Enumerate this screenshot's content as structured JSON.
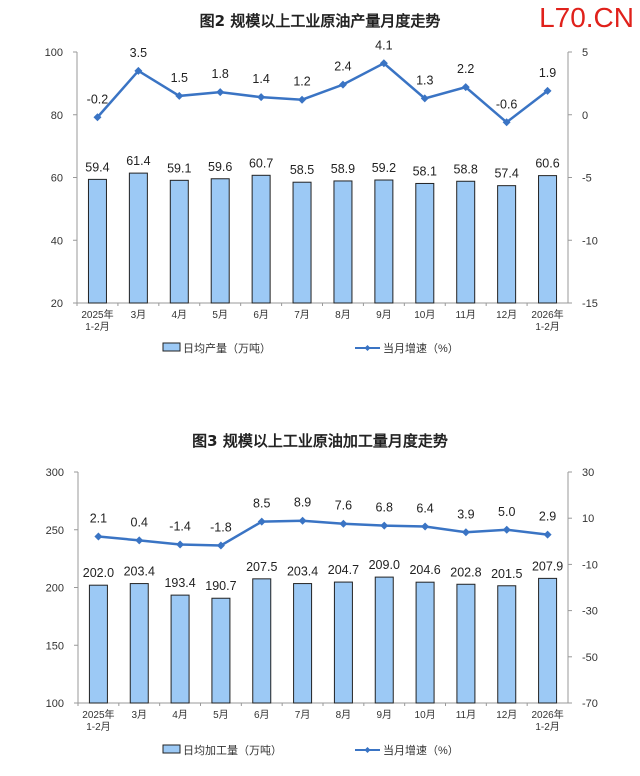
{
  "watermark": "L70.CN",
  "chart_data": [
    {
      "type": "bar+line",
      "title": "图2  规模以上工业原油产量月度走势",
      "categories": [
        [
          "2025年",
          "1-2月"
        ],
        [
          "3月"
        ],
        [
          "4月"
        ],
        [
          "5月"
        ],
        [
          "6月"
        ],
        [
          "7月"
        ],
        [
          "8月"
        ],
        [
          "9月"
        ],
        [
          "10月"
        ],
        [
          "11月"
        ],
        [
          "12月"
        ],
        [
          "2026年",
          "1-2月"
        ]
      ],
      "series": [
        {
          "name": "日均产量（万吨）",
          "type": "bar",
          "axis": "left",
          "values": [
            59.4,
            61.4,
            59.1,
            59.6,
            60.7,
            58.5,
            58.9,
            59.2,
            58.1,
            58.8,
            57.4,
            60.6
          ],
          "labels": [
            "59.4",
            "61.4",
            "59.1",
            "59.6",
            "60.7",
            "58.5",
            "58.9",
            "59.2",
            "58.1",
            "58.8",
            "57.4",
            "60.6"
          ]
        },
        {
          "name": "当月增速（%）",
          "type": "line",
          "axis": "right",
          "values": [
            -0.2,
            3.5,
            1.5,
            1.8,
            1.4,
            1.2,
            2.4,
            4.1,
            1.3,
            2.2,
            -0.6,
            1.9
          ],
          "labels": [
            "-0.2",
            "3.5",
            "1.5",
            "1.8",
            "1.4",
            "1.2",
            "2.4",
            "4.1",
            "1.3",
            "2.2",
            "-0.6",
            "1.9"
          ]
        }
      ],
      "ylim_left": [
        20,
        100
      ],
      "yticks_left": [
        "20",
        "40",
        "60",
        "80",
        "100"
      ],
      "ylim_right": [
        -15,
        5
      ],
      "yticks_right": [
        "-15",
        "-10",
        "-5",
        "0",
        "5"
      ],
      "legend": "bottom",
      "bar_color": "#9cc9f5",
      "line_color": "#3a74c4"
    },
    {
      "type": "bar+line",
      "title": "图3  规模以上工业原油加工量月度走势",
      "categories": [
        [
          "2025年",
          "1-2月"
        ],
        [
          "3月"
        ],
        [
          "4月"
        ],
        [
          "5月"
        ],
        [
          "6月"
        ],
        [
          "7月"
        ],
        [
          "8月"
        ],
        [
          "9月"
        ],
        [
          "10月"
        ],
        [
          "11月"
        ],
        [
          "12月"
        ],
        [
          "2026年",
          "1-2月"
        ]
      ],
      "series": [
        {
          "name": "日均加工量（万吨）",
          "type": "bar",
          "axis": "left",
          "values": [
            202.0,
            203.4,
            193.4,
            190.7,
            207.5,
            203.4,
            204.7,
            209.0,
            204.6,
            202.8,
            201.5,
            207.9
          ],
          "labels": [
            "202.0",
            "203.4",
            "193.4",
            "190.7",
            "207.5",
            "203.4",
            "204.7",
            "209.0",
            "204.6",
            "202.8",
            "201.5",
            "207.9"
          ]
        },
        {
          "name": "当月增速（%）",
          "type": "line",
          "axis": "right",
          "values": [
            2.1,
            0.4,
            -1.4,
            -1.8,
            8.5,
            8.9,
            7.6,
            6.8,
            6.4,
            3.9,
            5.0,
            2.9
          ],
          "labels": [
            "2.1",
            "0.4",
            "-1.4",
            "-1.8",
            "8.5",
            "8.9",
            "7.6",
            "6.8",
            "6.4",
            "3.9",
            "5.0",
            "2.9"
          ]
        }
      ],
      "ylim_left": [
        100,
        300
      ],
      "yticks_left": [
        "100",
        "150",
        "200",
        "250",
        "300"
      ],
      "ylim_right": [
        -70,
        30
      ],
      "yticks_right": [
        "-70",
        "-50",
        "-30",
        "-10",
        "10",
        "30"
      ],
      "legend": "bottom",
      "bar_color": "#9cc9f5",
      "line_color": "#3a74c4"
    }
  ]
}
